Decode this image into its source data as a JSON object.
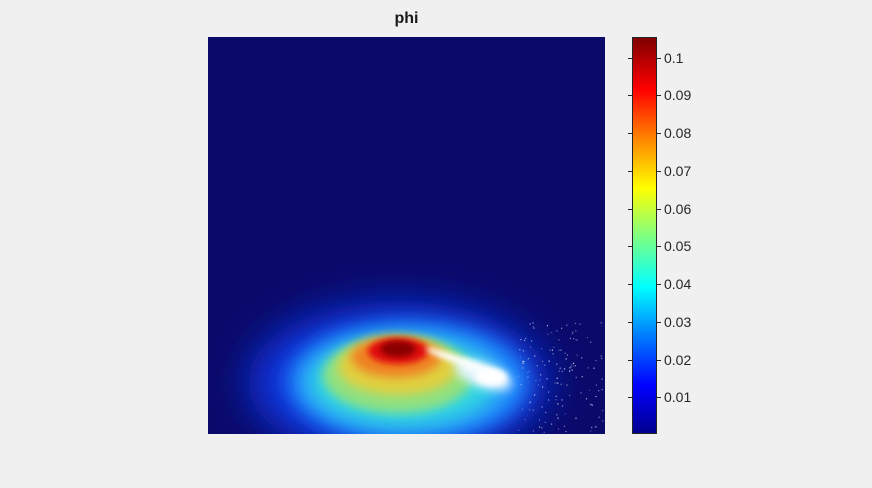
{
  "chart_data": {
    "type": "heatmap",
    "title": "phi",
    "xlabel": "",
    "ylabel": "",
    "colormap": "jet",
    "colorbar": {
      "min": 0.0003,
      "max": 0.1055,
      "ticks": [
        0.01,
        0.02,
        0.03,
        0.04,
        0.05,
        0.06,
        0.07,
        0.08,
        0.09,
        0.1
      ],
      "tick_labels": [
        "0.01",
        "0.02",
        "0.03",
        "0.04",
        "0.05",
        "0.06",
        "0.07",
        "0.08",
        "0.09",
        "0.1"
      ],
      "placement": "right"
    },
    "features": [
      {
        "kind": "peak",
        "value": 0.105,
        "location": "lower-center"
      },
      {
        "kind": "saturated-highlight",
        "color": "#ffffff",
        "location": "lower-center-right"
      }
    ],
    "axes_visible": false
  }
}
